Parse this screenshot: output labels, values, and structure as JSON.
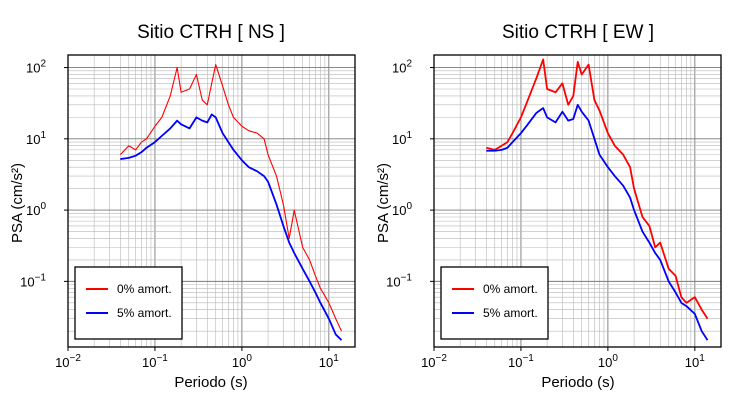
{
  "chart_data": [
    {
      "type": "line",
      "title": "Sitio CTRH [ NS ]",
      "xlabel": "Periodo (s)",
      "ylabel": "PSA (cm/s²)",
      "xscale": "log",
      "yscale": "log",
      "xlim": [
        0.01,
        20
      ],
      "ylim": [
        0.012,
        150
      ],
      "grid": true,
      "legend_position": "bottom-left",
      "x_ticks": [
        {
          "v": 0.01,
          "b": "10",
          "e": "−2"
        },
        {
          "v": 0.1,
          "b": "10",
          "e": "−1"
        },
        {
          "v": 1,
          "b": "10",
          "e": "0"
        },
        {
          "v": 10,
          "b": "10",
          "e": "1"
        }
      ],
      "y_ticks": [
        {
          "v": 0.1,
          "b": "10",
          "e": "−1"
        },
        {
          "v": 1,
          "b": "10",
          "e": "0"
        },
        {
          "v": 10,
          "b": "10",
          "e": "1"
        },
        {
          "v": 100,
          "b": "10",
          "e": "2"
        }
      ],
      "x": [
        0.04,
        0.05,
        0.06,
        0.07,
        0.08,
        0.1,
        0.12,
        0.15,
        0.18,
        0.2,
        0.25,
        0.3,
        0.35,
        0.4,
        0.45,
        0.5,
        0.6,
        0.7,
        0.8,
        1.0,
        1.2,
        1.5,
        1.8,
        2.0,
        2.5,
        3.0,
        3.5,
        4.0,
        5.0,
        6.0,
        7.0,
        8.0,
        10.0,
        12.0,
        14.0
      ],
      "series": [
        {
          "name": "0% amort.",
          "color": "#ff0000",
          "values": [
            6,
            8,
            7,
            9,
            10,
            15,
            20,
            40,
            100,
            45,
            50,
            80,
            35,
            30,
            60,
            110,
            55,
            30,
            20,
            15,
            13,
            12,
            10,
            6,
            3,
            1.2,
            0.4,
            1.0,
            0.3,
            0.2,
            0.12,
            0.08,
            0.05,
            0.03,
            0.02
          ]
        },
        {
          "name": "5% amort.",
          "color": "#0000ff",
          "values": [
            5.2,
            5.4,
            5.8,
            6.5,
            7.5,
            9,
            11,
            14,
            18,
            16,
            14,
            20,
            18,
            17,
            22,
            20,
            12,
            9,
            7,
            5,
            4,
            3.5,
            3,
            2.5,
            1.2,
            0.6,
            0.35,
            0.25,
            0.15,
            0.1,
            0.07,
            0.05,
            0.03,
            0.018,
            0.015
          ]
        }
      ]
    },
    {
      "type": "line",
      "title": "Sitio CTRH [ EW ]",
      "xlabel": "Periodo (s)",
      "ylabel": "PSA (cm/s²)",
      "xscale": "log",
      "yscale": "log",
      "xlim": [
        0.01,
        20
      ],
      "ylim": [
        0.012,
        150
      ],
      "grid": true,
      "legend_position": "bottom-left",
      "x_ticks": [
        {
          "v": 0.01,
          "b": "10",
          "e": "−2"
        },
        {
          "v": 0.1,
          "b": "10",
          "e": "−1"
        },
        {
          "v": 1,
          "b": "10",
          "e": "0"
        },
        {
          "v": 10,
          "b": "10",
          "e": "1"
        }
      ],
      "y_ticks": [
        {
          "v": 0.1,
          "b": "10",
          "e": "−1"
        },
        {
          "v": 1,
          "b": "10",
          "e": "0"
        },
        {
          "v": 10,
          "b": "10",
          "e": "1"
        },
        {
          "v": 100,
          "b": "10",
          "e": "2"
        }
      ],
      "x": [
        0.04,
        0.05,
        0.06,
        0.07,
        0.08,
        0.1,
        0.12,
        0.15,
        0.18,
        0.2,
        0.25,
        0.3,
        0.35,
        0.4,
        0.45,
        0.5,
        0.6,
        0.7,
        0.8,
        1.0,
        1.2,
        1.5,
        1.8,
        2.0,
        2.5,
        3.0,
        3.5,
        4.0,
        5.0,
        6.0,
        7.0,
        8.0,
        10.0,
        12.0,
        14.0
      ],
      "series": [
        {
          "name": "0% amort.",
          "color": "#ff0000",
          "values": [
            7.5,
            7,
            8,
            9,
            12,
            20,
            35,
            70,
            130,
            50,
            45,
            60,
            30,
            40,
            120,
            80,
            110,
            35,
            25,
            12,
            8,
            6,
            4,
            2,
            0.8,
            0.6,
            0.3,
            0.35,
            0.15,
            0.12,
            0.06,
            0.05,
            0.06,
            0.04,
            0.03
          ]
        },
        {
          "name": "5% amort.",
          "color": "#0000ff",
          "values": [
            6.8,
            6.8,
            7,
            7.5,
            9,
            12,
            16,
            23,
            27,
            20,
            17,
            24,
            18,
            19,
            30,
            24,
            18,
            10,
            6,
            4,
            3,
            2.2,
            1.5,
            1,
            0.5,
            0.35,
            0.25,
            0.2,
            0.1,
            0.07,
            0.05,
            0.045,
            0.035,
            0.02,
            0.015
          ]
        }
      ]
    }
  ]
}
